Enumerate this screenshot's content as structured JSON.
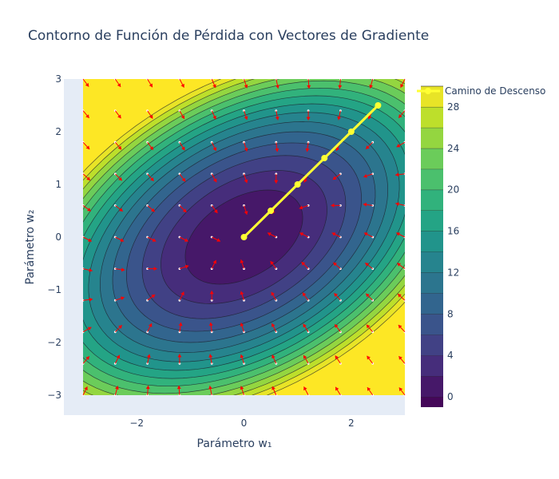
{
  "chart_data": {
    "type": "contour",
    "title": "Contorno de Función de Pérdida con Vectores de Gradiente",
    "xlabel": "Parámetro w₁",
    "ylabel": "Parámetro w₂",
    "xlim": [
      -3,
      3
    ],
    "ylim": [
      -3,
      3
    ],
    "x_ticks": [
      -2,
      0,
      2
    ],
    "y_ticks": [
      -3,
      -2,
      -1,
      0,
      1,
      2,
      3
    ],
    "x_tick_labels": [
      "−2",
      "0",
      "2"
    ],
    "y_tick_labels": [
      "−3",
      "−2",
      "−1",
      "0",
      "1",
      "2",
      "3"
    ],
    "contour": {
      "function": "loss = 2*w1^2 + 3*w2^2 - 2*w1*w2",
      "zmin": -1,
      "zmax": 30,
      "levels": [
        0,
        2,
        4,
        6,
        8,
        10,
        12,
        14,
        16,
        18,
        20,
        22,
        24,
        26,
        28,
        30
      ],
      "colorscale": "viridis",
      "colorbar_ticks": [
        0,
        4,
        8,
        12,
        16,
        20,
        24,
        28
      ]
    },
    "gradient_field": {
      "grid_x": [
        -3.0,
        -2.4,
        -1.8,
        -1.2,
        -0.6,
        0.0,
        0.6,
        1.2,
        1.8,
        2.4,
        3.0
      ],
      "grid_y": [
        -3.0,
        -2.4,
        -1.8,
        -1.2,
        -0.6,
        0.0,
        0.6,
        1.2,
        1.8,
        2.4,
        3.0
      ],
      "color": "#ff0000",
      "point_color": "#ffffff"
    },
    "series": [
      {
        "name": "Camino de Descenso",
        "type": "line+markers",
        "color": "#ffff33",
        "x": [
          0,
          0.5,
          1.0,
          1.5,
          2.0,
          2.5
        ],
        "y": [
          0,
          0.5,
          1.0,
          1.5,
          2.0,
          2.5
        ]
      }
    ],
    "legend_position": "top-right"
  }
}
